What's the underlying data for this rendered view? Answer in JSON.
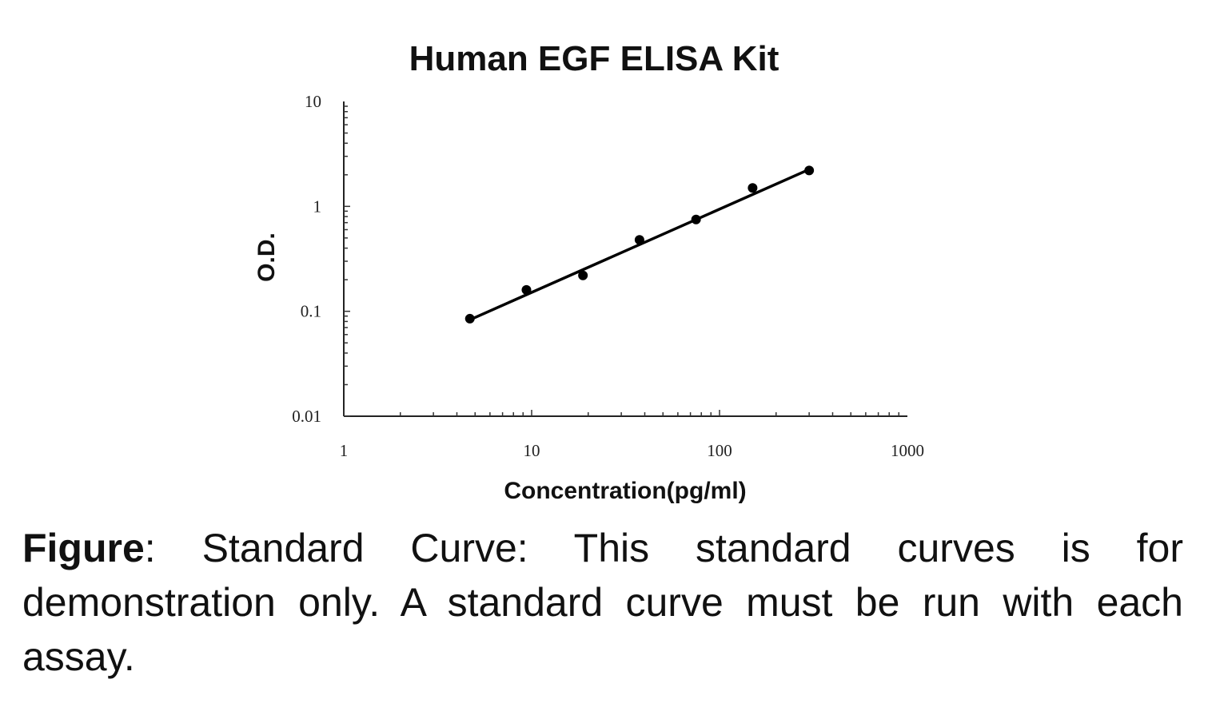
{
  "chart_data": {
    "type": "scatter",
    "title": "Human EGF ELISA Kit",
    "xlabel": "Concentration(pg/ml)",
    "ylabel": "O.D.",
    "x_scale": "log",
    "y_scale": "log",
    "xlim": [
      1,
      1000
    ],
    "ylim": [
      0.01,
      10
    ],
    "x_ticks": [
      "1",
      "10",
      "100",
      "1000"
    ],
    "y_ticks": [
      "0.01",
      "0.1",
      "1",
      "10"
    ],
    "grid": false,
    "legend": "none",
    "series": [
      {
        "x": [
          4.69,
          9.38,
          18.75,
          37.5,
          75,
          150,
          300
        ],
        "y": [
          0.085,
          0.16,
          0.22,
          0.48,
          0.75,
          1.5,
          2.2
        ]
      }
    ],
    "fit_line": {
      "x": [
        4.69,
        300
      ],
      "y": [
        0.083,
        2.25
      ]
    }
  },
  "caption": {
    "lead": "Figure",
    "text": ": Standard Curve: This standard curves is for demonstration only. A standard curve must be run with each assay."
  }
}
